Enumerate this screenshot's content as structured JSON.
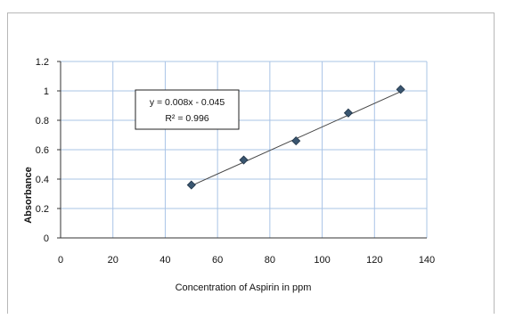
{
  "chart_data": {
    "type": "scatter",
    "title": "",
    "xlabel": "Concentration of Aspirin in ppm",
    "ylabel": "Absorbance",
    "xlim": [
      0,
      140
    ],
    "ylim": [
      0,
      1.2
    ],
    "x_ticks": [
      "0",
      "20",
      "40",
      "60",
      "80",
      "100",
      "120",
      "140"
    ],
    "y_ticks": [
      "0",
      "0.2",
      "0.4",
      "0.6",
      "0.8",
      "1",
      "1.2"
    ],
    "grid": true,
    "series": [
      {
        "points": [
          {
            "x": 50,
            "y": 0.36
          },
          {
            "x": 70,
            "y": 0.53
          },
          {
            "x": 90,
            "y": 0.66
          },
          {
            "x": 110,
            "y": 0.85
          },
          {
            "x": 130,
            "y": 1.01
          }
        ],
        "marker_color": "#3a5670"
      }
    ],
    "trendline": {
      "slope": 0.008,
      "intercept": -0.045,
      "x_range": [
        50,
        130
      ],
      "color": "#444444",
      "equation_label": "y = 0.008x - 0.045",
      "r2_label": "R² = 0.996"
    },
    "colors": {
      "gridline": "#a9c4e6",
      "axis": "#333333"
    }
  }
}
